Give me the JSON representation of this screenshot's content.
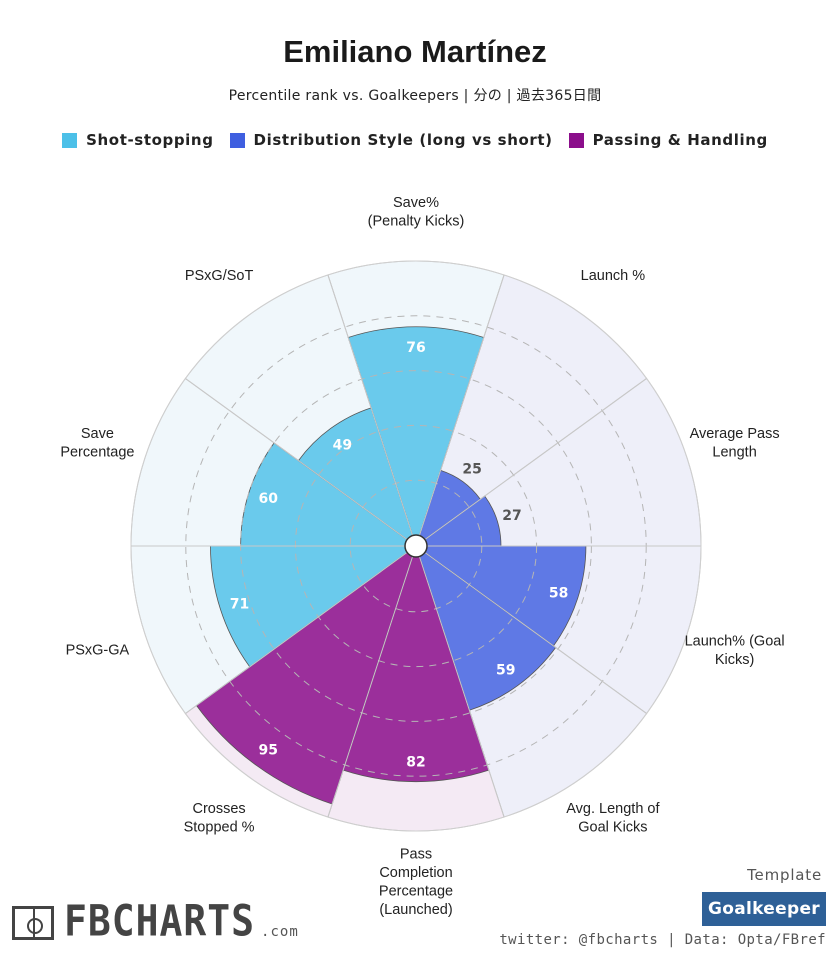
{
  "header": {
    "title": "Emiliano Martínez",
    "subtitle": "Percentile rank vs. Goalkeepers | 分の | 過去365日間"
  },
  "colors": {
    "shot_stopping": "#4cc0e8",
    "distribution": "#3f5fe0",
    "passing": "#8b0e8b",
    "shot_stopping_bg": "#f0f7fb",
    "distribution_bg": "#eeeff9",
    "passing_bg": "#f4eaf4"
  },
  "chart_data": {
    "type": "radial-bar",
    "title": "Emiliano Martínez",
    "subtitle": "Percentile rank vs. Goalkeepers | 分の | 過去365日間",
    "rlim": [
      0,
      100
    ],
    "grid": true,
    "legend_position": "top-center",
    "series": [
      {
        "name": "Shot-stopping",
        "color": "#4cc0e8"
      },
      {
        "name": "Distribution Style (long vs short)",
        "color": "#3f5fe0"
      },
      {
        "name": "Passing & Handling",
        "color": "#8b0e8b"
      }
    ],
    "categories": [
      {
        "label": "Save%\n(Penalty Kicks)",
        "value": 76,
        "group": 0
      },
      {
        "label": "Launch %",
        "value": 25,
        "group": 1
      },
      {
        "label": "Average Pass\nLength",
        "value": 27,
        "group": 1
      },
      {
        "label": "Launch% (Goal\nKicks)",
        "value": 58,
        "group": 1
      },
      {
        "label": "Avg. Length of\nGoal Kicks",
        "value": 59,
        "group": 1
      },
      {
        "label": "Pass\nCompletion\nPercentage\n(Launched)",
        "value": 82,
        "group": 2
      },
      {
        "label": "Crosses\nStopped %",
        "value": 95,
        "group": 2
      },
      {
        "label": "PSxG-GA",
        "value": 71,
        "group": 0
      },
      {
        "label": "Save\nPercentage",
        "value": 60,
        "group": 0
      },
      {
        "label": "PSxG/SoT",
        "value": 49,
        "group": 0
      }
    ]
  },
  "footer": {
    "template_caption": "Template",
    "template_badge": "Goalkeeper",
    "credit": "twitter: @fbcharts | Data: Opta/FBref",
    "logo_text": "FBCHARTS",
    "logo_domain": ".com"
  }
}
